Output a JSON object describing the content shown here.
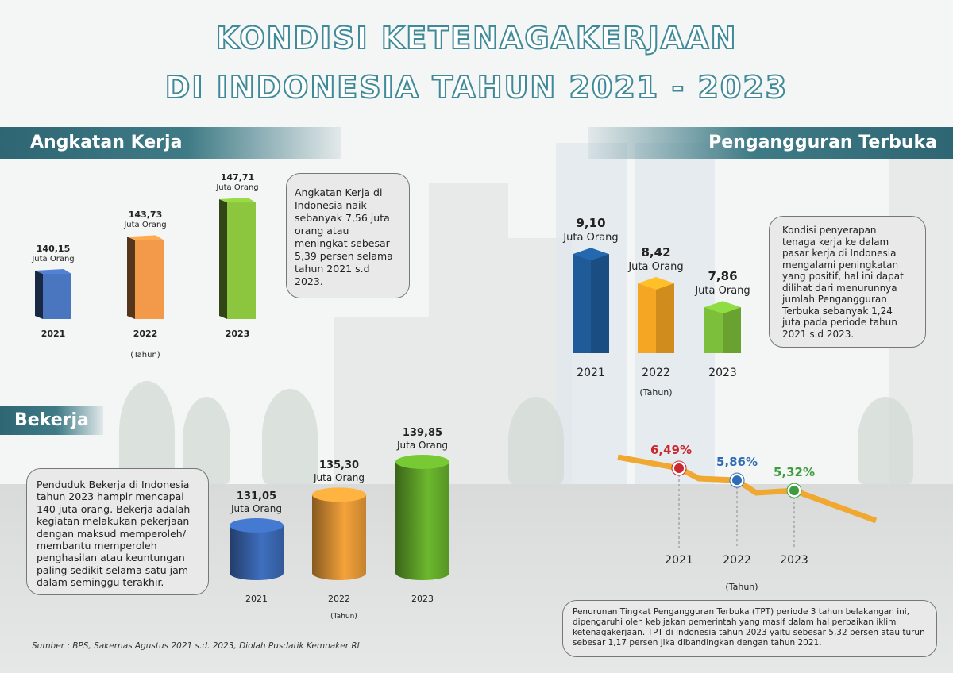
{
  "title": {
    "line1": "Kondisi Ketenagakerjaan",
    "line2": "di Indonesia Tahun 2021 - 2023"
  },
  "source": "Sumber : BPS, Sakernas Agustus 2021 s.d. 2023, Diolah Pusdatik Kemnaker RI",
  "chart_data": [
    {
      "type": "bar",
      "title": "Angkatan Kerja",
      "categories": [
        "2021",
        "2022",
        "2023"
      ],
      "values": [
        140.15,
        143.73,
        147.71
      ],
      "value_labels": [
        "140,15",
        "143,73",
        "147,71"
      ],
      "unit": "Juta Orang",
      "xlabel": "(Tahun)",
      "colors": [
        "#4a76c0",
        "#f39a4a",
        "#8cc63f"
      ],
      "note": "Angkatan Kerja di Indonesia naik sebanyak 7,56 juta orang atau meningkat sebesar 5,39 persen selama tahun 2021 s.d 2023."
    },
    {
      "type": "bar",
      "title": "Pengangguran Terbuka",
      "categories": [
        "2021",
        "2022",
        "2023"
      ],
      "values": [
        9.1,
        8.42,
        7.86
      ],
      "value_labels": [
        "9,10",
        "8,42",
        "7,86"
      ],
      "unit": "Juta Orang",
      "xlabel": "(Tahun)",
      "colors": [
        "#1f5b99",
        "#f5a623",
        "#7cbf3a"
      ],
      "note": "Kondisi penyerapan tenaga kerja ke dalam pasar kerja di Indonesia mengalami peningkatan yang positif, hal ini dapat dilihat dari menurunnya jumlah Pengangguran Terbuka sebanyak 1,24 juta pada periode tahun 2021 s.d 2023."
    },
    {
      "type": "bar",
      "title": "Bekerja",
      "categories": [
        "2021",
        "2022",
        "2023"
      ],
      "values": [
        131.05,
        135.3,
        139.85
      ],
      "value_labels": [
        "131,05",
        "135,30",
        "139,85"
      ],
      "unit": "Juta Orang",
      "xlabel": "(Tahun)",
      "colors": [
        "#3f6fbf",
        "#f5a33a",
        "#6cb82e"
      ],
      "note": "Penduduk Bekerja di Indonesia tahun 2023 hampir mencapai 140 juta orang. Bekerja adalah kegiatan melakukan pekerjaan dengan maksud memperoleh/ membantu memperoleh penghasilan atau keuntungan paling sedikit selama satu jam dalam seminggu terakhir."
    },
    {
      "type": "line",
      "title": "Tingkat Pengangguran Terbuka",
      "categories": [
        "2021",
        "2022",
        "2023"
      ],
      "values": [
        6.49,
        5.86,
        5.32
      ],
      "value_labels": [
        "6,49%",
        "5,86%",
        "5,32%"
      ],
      "xlabel": "(Tahun)",
      "line_color": "#f0a830",
      "point_colors": [
        "#c8282e",
        "#2e6db5",
        "#3f9b3f"
      ],
      "note": "Penurunan Tingkat Pengangguran Terbuka (TPT) periode 3 tahun belakangan ini, dipengaruhi oleh kebijakan pemerintah yang masif dalam hal perbaikan iklim ketenagakerjaan. TPT di Indonesia tahun 2023 yaitu sebesar 5,32 persen atau turun sebesar 1,17 persen jika dibandingkan dengan tahun 2021."
    }
  ]
}
